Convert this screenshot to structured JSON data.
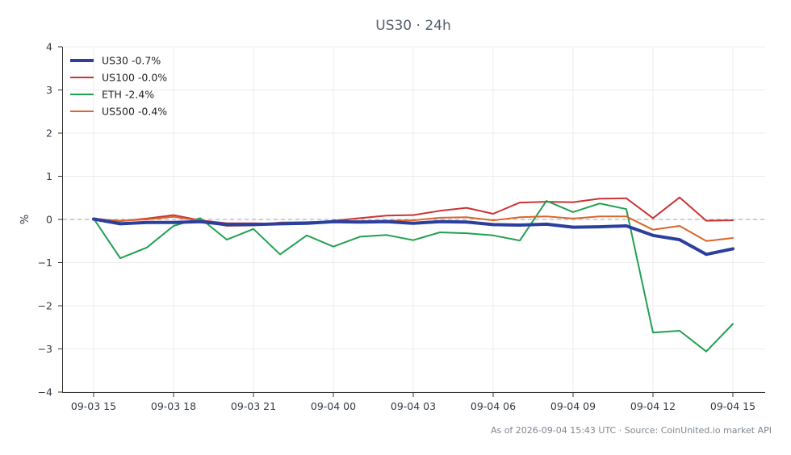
{
  "chart_data": {
    "type": "line",
    "title": "US30 · 24h",
    "xlabel": "",
    "ylabel": "%",
    "ylim": [
      -4,
      4
    ],
    "yticks": [
      "4",
      "3",
      "2",
      "1",
      "0",
      "−1",
      "−2",
      "−3",
      "−4"
    ],
    "xticks": [
      "09-03 15",
      "09-03 18",
      "09-03 21",
      "09-04 00",
      "09-04 03",
      "09-04 06",
      "09-04 09",
      "09-04 12",
      "09-04 15"
    ],
    "x": [
      "09-03 15",
      "09-03 16",
      "09-03 17",
      "09-03 18",
      "09-03 19",
      "09-03 20",
      "09-03 21",
      "09-03 22",
      "09-03 23",
      "09-04 00",
      "09-04 01",
      "09-04 02",
      "09-04 03",
      "09-04 04",
      "09-04 05",
      "09-04 06",
      "09-04 07",
      "09-04 08",
      "09-04 09",
      "09-04 10",
      "09-04 11",
      "09-04 12",
      "09-04 13",
      "09-04 14",
      "09-04 15"
    ],
    "grid": true,
    "legend_position": "top-left",
    "zero_line": true,
    "series": [
      {
        "name": "US30 -0.7%",
        "color": "#2b3f9e",
        "width": 4,
        "values": [
          0.01,
          -0.1,
          -0.07,
          -0.07,
          -0.05,
          -0.12,
          -0.12,
          -0.1,
          -0.09,
          -0.05,
          -0.06,
          -0.05,
          -0.09,
          -0.05,
          -0.06,
          -0.12,
          -0.13,
          -0.11,
          -0.18,
          -0.17,
          -0.15,
          -0.37,
          -0.47,
          -0.81,
          -0.68
        ]
      },
      {
        "name": "US100 -0.0%",
        "color": "#cc3333",
        "width": 2,
        "values": [
          0.02,
          -0.04,
          0.02,
          0.1,
          -0.02,
          -0.09,
          -0.09,
          -0.1,
          -0.1,
          -0.03,
          0.03,
          0.09,
          0.1,
          0.2,
          0.27,
          0.13,
          0.39,
          0.41,
          0.4,
          0.48,
          0.49,
          0.03,
          0.51,
          -0.03,
          -0.02
        ]
      },
      {
        "name": "ETH -2.4%",
        "color": "#22a050",
        "width": 2,
        "values": [
          0.02,
          -0.9,
          -0.65,
          -0.15,
          0.03,
          -0.47,
          -0.22,
          -0.81,
          -0.37,
          -0.63,
          -0.4,
          -0.36,
          -0.48,
          -0.3,
          -0.32,
          -0.37,
          -0.49,
          0.43,
          0.17,
          0.37,
          0.24,
          -2.62,
          -2.58,
          -3.06,
          -2.42
        ]
      },
      {
        "name": "US500 -0.4%",
        "color": "#d9662a",
        "width": 2,
        "values": [
          0.01,
          -0.03,
          0.0,
          0.06,
          -0.03,
          -0.15,
          -0.14,
          -0.07,
          -0.06,
          -0.05,
          -0.04,
          -0.03,
          -0.02,
          0.04,
          0.05,
          -0.02,
          0.05,
          0.07,
          0.02,
          0.07,
          0.07,
          -0.24,
          -0.15,
          -0.5,
          -0.43
        ]
      }
    ],
    "footer": "As of 2026-09-04 15:43 UTC · Source: CoinUnited.io market API"
  }
}
